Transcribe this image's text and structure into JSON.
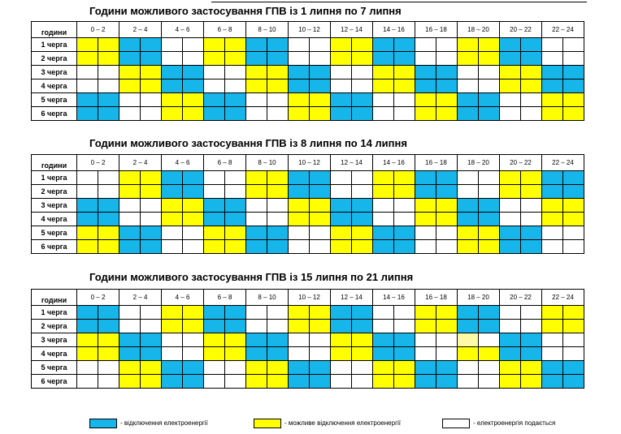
{
  "colors": {
    "B": "#16b6ea",
    "Y": "#ffff00",
    "W": "#ffffff",
    "P": "#fdfaa6"
  },
  "col_header_label": "години",
  "row_labels": [
    "1 черга",
    "2 черга",
    "3 черга",
    "4 черга",
    "5 черга",
    "6 черга"
  ],
  "hours": [
    "0 – 2",
    "2 – 4",
    "4 – 6",
    "6 – 8",
    "8 – 10",
    "10 – 12",
    "12 – 14",
    "14 – 16",
    "16 – 18",
    "18 – 20",
    "20 – 22",
    "22 – 24"
  ],
  "tables": [
    {
      "title": "Години можливого застосування ГПВ із 1 липня по 7 липня",
      "rows": [
        "YYBBWWYYBBWWYYBBWWYYBBWW",
        "YYBBWWYYBBWWYYBBWWYYBBWW",
        "WWYYBBWWYYBBWWYYBBWWYYBB",
        "WWYYBBWWYYBBWWYYBBWWYYBB",
        "BBWWYYBBWWYYBBWWYYBBWWYY",
        "BBWWYYBBWWYYBBWWYYBBWWYY"
      ]
    },
    {
      "title": "Години можливого застосування ГПВ із 8 липня по 14 липня",
      "rows": [
        "WWYYBBWWYYBBWWYYBBWWYYBB",
        "WWYYBBWWYYBBWWYYBBWWYYBB",
        "BBWWYYBBWWYYBBWWYYBBWWYY",
        "BBWWYYBBWWYYBBWWYYBBWWYY",
        "YYBBWWYYBBWWYYBBWWYYBBWW",
        "YYBBWWYYBBWWYYBBWWYYBBWW"
      ]
    },
    {
      "title": "Години можливого застосування ГПВ із 15 липня по 21 липня",
      "rows": [
        "BBWWYYBBWWYYBBWWYYBBWWYY",
        "BBWWYYBBWWYYBBWWYYBBWWYY",
        "YYBBWWYYBBWWYYBBWWPWBBWW",
        "YYBBWWYYBBWWYYBBWWYYBBWW",
        "WWYYBBWWYYBBWWYYBBWWYYBB",
        "WWYYBBWWYYBBWWYYBBWWYYBB"
      ]
    }
  ],
  "legend": [
    {
      "color": "B",
      "label": "- відключення електроенергії"
    },
    {
      "color": "Y",
      "label": "- можливе відключення електроенергії"
    },
    {
      "color": "W",
      "label": "- електроенергія подається"
    }
  ]
}
